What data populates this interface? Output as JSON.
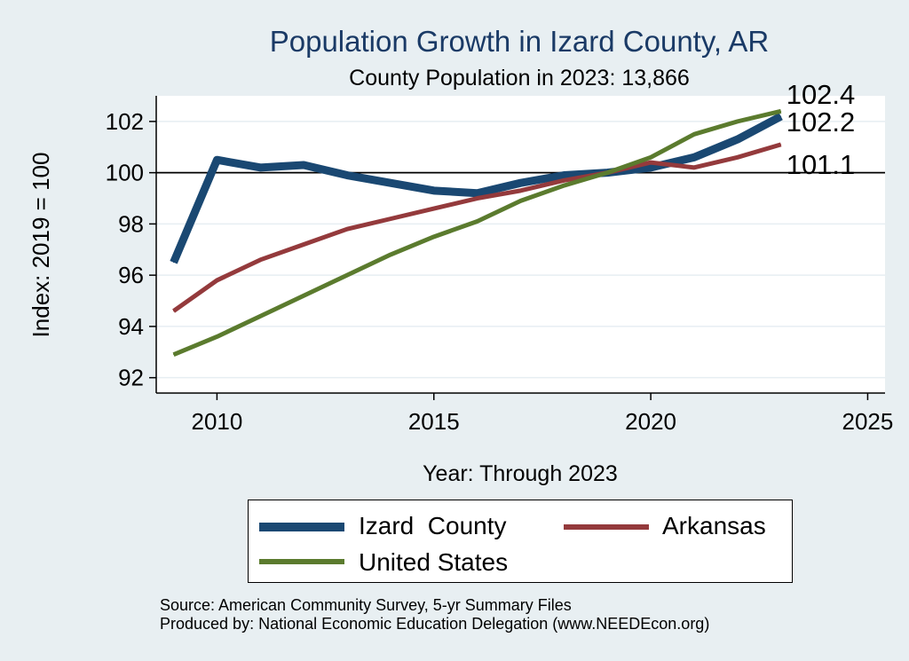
{
  "chart_data": {
    "type": "line",
    "title": "Population Growth in Izard County, AR",
    "subtitle": "County Population in 2023: 13,866",
    "xlabel": "Year: Through 2023",
    "ylabel": "Index: 2019 = 100",
    "xlim": [
      2008.6,
      2025.4
    ],
    "ylim": [
      91.4,
      103
    ],
    "xticks": [
      2010,
      2015,
      2020,
      2025
    ],
    "yticks": [
      92,
      94,
      96,
      98,
      100,
      102
    ],
    "reference_line": 100,
    "x": [
      2009,
      2010,
      2011,
      2012,
      2013,
      2014,
      2015,
      2016,
      2017,
      2018,
      2019,
      2020,
      2021,
      2022,
      2023
    ],
    "series": [
      {
        "name": "Izard  County",
        "color": "#1a4872",
        "width": 9,
        "values": [
          96.5,
          100.5,
          100.2,
          100.3,
          99.9,
          99.6,
          99.3,
          99.2,
          99.6,
          99.9,
          100.0,
          100.2,
          100.6,
          101.3,
          102.2
        ],
        "end_label": "102.2"
      },
      {
        "name": "Arkansas",
        "color": "#943a3c",
        "width": 5,
        "values": [
          94.6,
          95.8,
          96.6,
          97.2,
          97.8,
          98.2,
          98.6,
          99.0,
          99.3,
          99.7,
          100.0,
          100.4,
          100.2,
          100.6,
          101.1
        ],
        "end_label": "101.1"
      },
      {
        "name": "United States",
        "color": "#5b7b2e",
        "width": 5,
        "values": [
          92.9,
          93.6,
          94.4,
          95.2,
          96.0,
          96.8,
          97.5,
          98.1,
          98.9,
          99.5,
          100.0,
          100.6,
          101.5,
          102.0,
          102.4
        ],
        "end_label": "102.4"
      }
    ],
    "legend_position": "bottom"
  },
  "source": {
    "line1": "Source: American Community Survey, 5-yr Summary Files",
    "line2": "Produced by: National Economic Education Delegation (www.NEEDEcon.org)"
  }
}
